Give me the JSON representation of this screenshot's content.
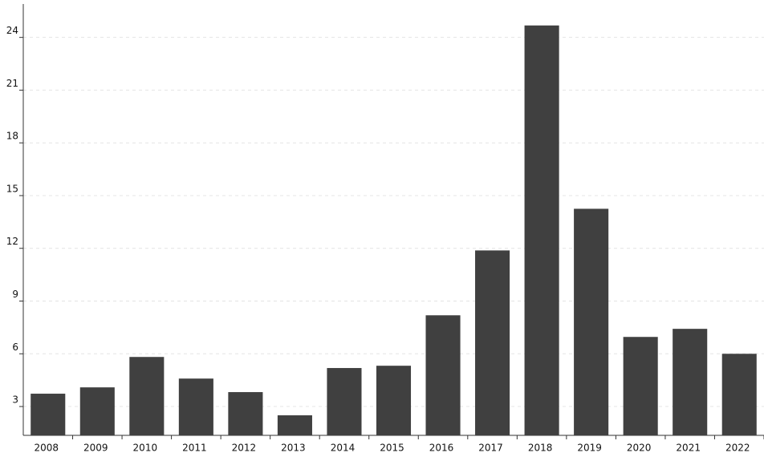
{
  "chart_data": {
    "type": "bar",
    "categories": [
      "2008",
      "2009",
      "2010",
      "2011",
      "2012",
      "2013",
      "2014",
      "2015",
      "2016",
      "2017",
      "2018",
      "2019",
      "2020",
      "2021",
      "2022"
    ],
    "values": [
      3.73,
      4.09,
      5.82,
      4.59,
      3.82,
      2.5,
      5.19,
      5.32,
      8.19,
      11.88,
      24.68,
      14.25,
      6.96,
      7.42,
      6.0
    ],
    "color": "#404040",
    "ylim": [
      1.36,
      25.9
    ],
    "yticks": [
      3,
      6,
      9,
      12,
      15,
      18,
      21,
      24
    ],
    "grid": true
  }
}
